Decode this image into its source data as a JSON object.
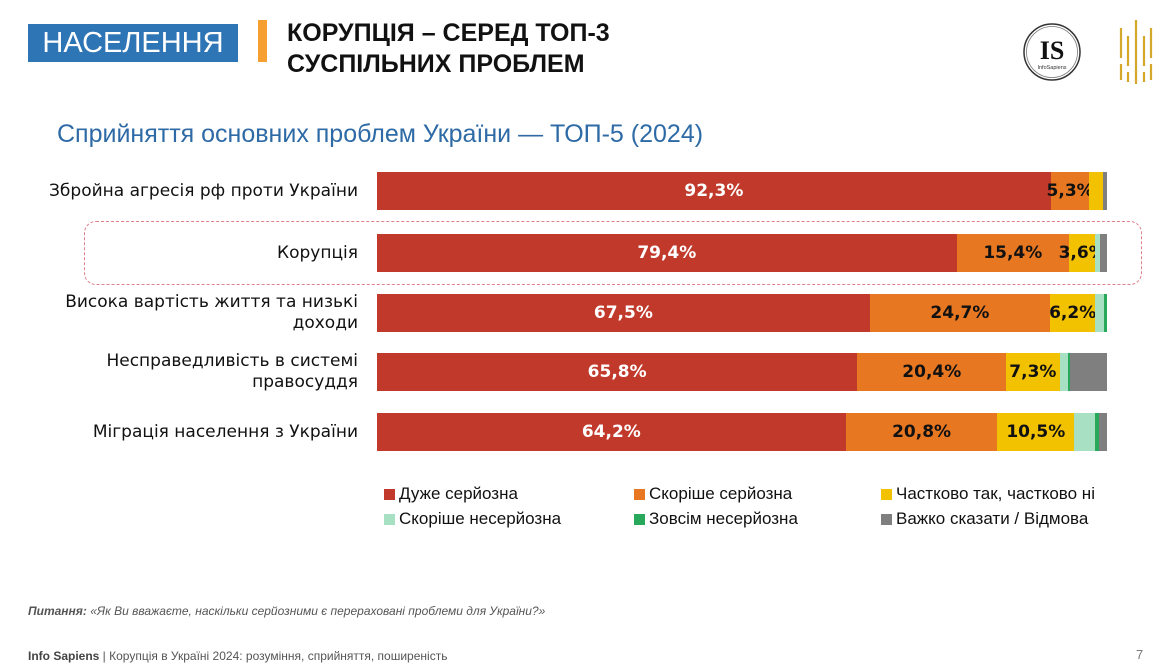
{
  "header": {
    "section_tag": "НАСЕЛЕННЯ",
    "headline_line1": "КОРУПЦІЯ – СЕРЕД ТОП-3",
    "headline_line2": "СУСПІЛЬНИХ ПРОБЛЕМ",
    "logo_text": "IS",
    "logo_subtext": "InfoSapiens",
    "colors": {
      "section_tag_bg": "#2e75b6",
      "accent": "#f5a030",
      "logo_gold": "#d4a82a"
    }
  },
  "chart_data": {
    "type": "bar",
    "orientation": "horizontal-stacked-100",
    "title": "Сприйняття основних проблем України — ТОП-5 (2024)",
    "xlabel": "",
    "ylabel": "",
    "xlim": [
      0,
      100
    ],
    "unit": "%",
    "grid": false,
    "legend_position": "bottom",
    "highlighted_category": "Корупція",
    "categories": [
      "Збройна агресія рф проти України",
      "Корупція",
      "Висока вартість життя та низькі доходи",
      "Несправедливість в системі правосуддя",
      "Міграція населення з України"
    ],
    "series": [
      {
        "name": "Дуже серйозна",
        "color": "#c0392b",
        "text_color": "#ffffff",
        "values": [
          92.3,
          79.4,
          67.5,
          65.8,
          64.2
        ],
        "labels": [
          "92,3%",
          "79,4%",
          "67,5%",
          "65,8%",
          "64,2%"
        ]
      },
      {
        "name": "Скоріше серйозна",
        "color": "#e87722",
        "text_color": "#111111",
        "values": [
          5.3,
          15.4,
          24.7,
          20.4,
          20.8
        ],
        "labels": [
          "5,3%",
          "15,4%",
          "24,7%",
          "20,4%",
          "20,8%"
        ]
      },
      {
        "name": "Частково так, частково ні",
        "color": "#f2c200",
        "text_color": "#111111",
        "values": [
          1.8,
          3.6,
          6.2,
          7.3,
          10.5
        ],
        "labels": [
          "",
          "3,6%",
          "6,2%",
          "7,3%",
          "10,5%"
        ]
      },
      {
        "name": "Скоріше несерйозна",
        "color": "#a8e0c4",
        "text_color": "#111111",
        "values": [
          0.0,
          0.6,
          1.2,
          1.2,
          2.9
        ],
        "labels": [
          "",
          "",
          "",
          "",
          ""
        ]
      },
      {
        "name": "Зовсім несерйозна",
        "color": "#27a85a",
        "text_color": "#111111",
        "values": [
          0.0,
          0.0,
          0.4,
          0.3,
          0.5
        ],
        "labels": [
          "",
          "",
          "",
          "",
          ""
        ]
      },
      {
        "name": "Важко сказати / Відмова",
        "color": "#7f7f7f",
        "text_color": "#111111",
        "values": [
          0.6,
          1.0,
          0.0,
          5.0,
          1.1
        ],
        "labels": [
          "",
          "",
          "",
          "",
          ""
        ]
      }
    ]
  },
  "footer": {
    "question_label": "Питання:",
    "question_text": " «Як Ви вважаєте, наскільки серйозними є перераховані проблеми для України?»",
    "source_bold": "Info Sapiens",
    "source_rest": " | Корупція в Україні 2024: розуміння, сприйняття, поширеність",
    "page_number": "7"
  }
}
